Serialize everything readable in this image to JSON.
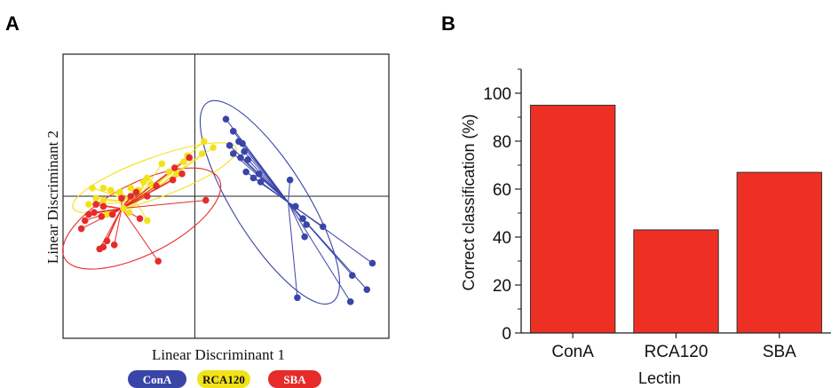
{
  "panels": {
    "a": "A",
    "b": "B"
  },
  "colors": {
    "conA": "#3a45a8",
    "rca": "#f2e21a",
    "sba": "#e62b2b",
    "bar": "#ee3024"
  },
  "chart_data": [
    {
      "type": "scatter",
      "xlabel": "Linear Discriminant 1",
      "ylabel": "Linear Discriminant 2",
      "grid": false,
      "legend_position": "bottom",
      "legend": [
        {
          "label": "ConA",
          "color": "#3a45a8",
          "text_color": "#ffffff"
        },
        {
          "label": "RCA120",
          "color": "#f2e21a",
          "text_color": "#111111"
        },
        {
          "label": "SBA",
          "color": "#e62b2b",
          "text_color": "#ffffff"
        }
      ],
      "series": [
        {
          "name": "ConA",
          "color": "#3a45a8",
          "centroid": [
            2.55,
            -0.15
          ],
          "points": [
            [
              0.85,
              1.9
            ],
            [
              1.05,
              1.6
            ],
            [
              0.95,
              1.25
            ],
            [
              1.2,
              1.35
            ],
            [
              1.3,
              1.3
            ],
            [
              1.35,
              1.1
            ],
            [
              1.25,
              0.95
            ],
            [
              1.45,
              0.9
            ],
            [
              1.05,
              1.05
            ],
            [
              1.4,
              0.6
            ],
            [
              1.75,
              0.55
            ],
            [
              1.8,
              0.35
            ],
            [
              1.6,
              0.45
            ],
            [
              2.6,
              0.4
            ],
            [
              2.75,
              -0.25
            ],
            [
              3.05,
              -0.7
            ],
            [
              2.95,
              -0.55
            ],
            [
              3.5,
              -0.75
            ],
            [
              3.0,
              -1.0
            ],
            [
              4.85,
              -1.65
            ],
            [
              4.3,
              -1.95
            ],
            [
              4.7,
              -2.3
            ],
            [
              2.8,
              -2.5
            ],
            [
              4.25,
              -2.6
            ]
          ]
        },
        {
          "name": "RCA120",
          "color": "#f2e21a",
          "centroid": [
            -1.6,
            -0.15
          ],
          "points": [
            [
              -2.8,
              0.2
            ],
            [
              -2.5,
              0.2
            ],
            [
              -2.3,
              0.15
            ],
            [
              -2.05,
              0.1
            ],
            [
              -2.7,
              -0.05
            ],
            [
              -2.9,
              -0.2
            ],
            [
              -1.75,
              0.2
            ],
            [
              -1.4,
              0.35
            ],
            [
              -1.55,
              0.15
            ],
            [
              -1.2,
              0.3
            ],
            [
              -1.3,
              0.45
            ],
            [
              -0.7,
              0.6
            ],
            [
              -0.9,
              0.8
            ],
            [
              -0.3,
              0.85
            ],
            [
              -0.2,
              1.0
            ],
            [
              0.2,
              1.05
            ],
            [
              0.5,
              1.2
            ],
            [
              0.25,
              1.35
            ],
            [
              -0.5,
              0.55
            ],
            [
              -1.3,
              -0.6
            ],
            [
              -1.8,
              -0.4
            ],
            [
              -2.4,
              -0.45
            ],
            [
              -1.95,
              -0.3
            ],
            [
              -2.5,
              -0.1
            ]
          ]
        },
        {
          "name": "SBA",
          "color": "#e62b2b",
          "centroid": [
            -2.0,
            -0.3
          ],
          "points": [
            [
              -3.0,
              -0.6
            ],
            [
              -3.1,
              -0.8
            ],
            [
              -2.9,
              -0.45
            ],
            [
              -2.75,
              -0.4
            ],
            [
              -2.55,
              -0.5
            ],
            [
              -2.25,
              -0.45
            ],
            [
              -2.5,
              -0.25
            ],
            [
              -2.7,
              -0.2
            ],
            [
              -2.0,
              -0.05
            ],
            [
              -1.6,
              0.1
            ],
            [
              -1.75,
              0.0
            ],
            [
              -1.3,
              0.0
            ],
            [
              -1.05,
              0.25
            ],
            [
              -0.6,
              0.4
            ],
            [
              -0.35,
              0.55
            ],
            [
              -0.55,
              0.7
            ],
            [
              -0.15,
              0.95
            ],
            [
              -1.5,
              -0.55
            ],
            [
              -2.4,
              -1.1
            ],
            [
              -2.5,
              -1.25
            ],
            [
              -2.6,
              -1.3
            ],
            [
              -1.0,
              -1.6
            ],
            [
              0.3,
              -0.1
            ],
            [
              -2.2,
              -1.2
            ]
          ]
        }
      ],
      "ellipses": [
        {
          "series": "ConA",
          "center": [
            2.05,
            -0.15
          ],
          "rx": 3.05,
          "ry": 0.95,
          "angle": -58,
          "color": "#3a45a8"
        },
        {
          "series": "RCA120",
          "center": [
            -1.1,
            0.45
          ],
          "rx": 2.25,
          "ry": 0.52,
          "angle": 20,
          "color": "#f2e21a"
        },
        {
          "series": "SBA",
          "center": [
            -1.45,
            -0.55
          ],
          "rx": 2.25,
          "ry": 0.92,
          "angle": 27,
          "color": "#e62b2b"
        }
      ],
      "xlim": [
        -3.6,
        5.3
      ],
      "ylim": [
        -3.5,
        3.5
      ]
    },
    {
      "type": "bar",
      "categories": [
        "ConA",
        "RCA120",
        "SBA"
      ],
      "values": [
        95,
        43,
        67
      ],
      "xlabel": "Lectin",
      "ylabel": "Correct classification (%)",
      "ylim": [
        0,
        110
      ],
      "yticks": [
        0,
        20,
        40,
        60,
        80,
        100
      ],
      "grid": false,
      "color": "#ee3024"
    }
  ]
}
